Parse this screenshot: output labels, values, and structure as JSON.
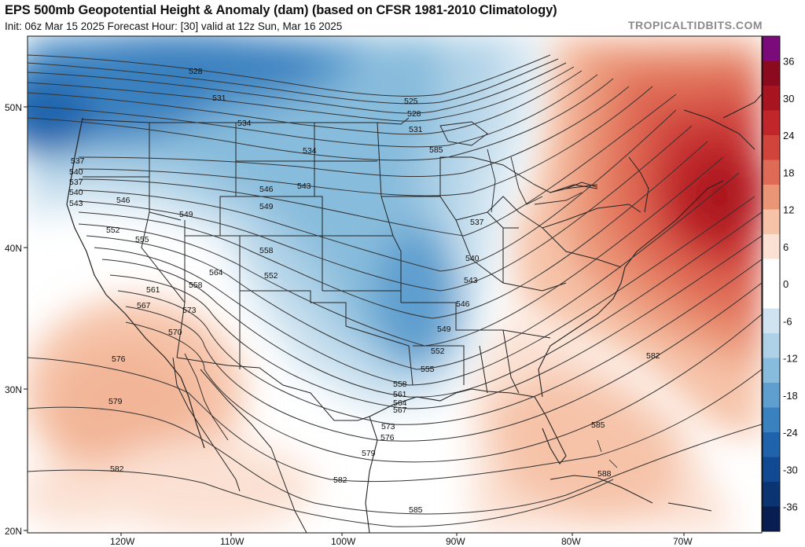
{
  "header": {
    "title": "EPS 500mb Geopotential Height & Anomaly (dam) (based on CFSR 1981-2010 Climatology)",
    "subtitle": "Init: 06z Mar 15 2025   Forecast Hour: [30]   valid at 12z Sun, Mar 16 2025",
    "site": "TROPICALTIDBITS.COM"
  },
  "axes": {
    "lat_labels": [
      "50N",
      "40N",
      "30N",
      "20N"
    ],
    "lon_labels": [
      "120W",
      "110W",
      "100W",
      "90W",
      "80W",
      "70W"
    ]
  },
  "colorbar": {
    "ticks": [
      "36",
      "30",
      "24",
      "18",
      "12",
      "6",
      "0",
      "-6",
      "-12",
      "-18",
      "-24",
      "-30",
      "-36"
    ],
    "colors": [
      "#7b0a7b",
      "#8b0a1e",
      "#a8141f",
      "#c0262a",
      "#d0443c",
      "#df6a55",
      "#eb9577",
      "#f6c3a8",
      "#fbe1d3",
      "#ffffff",
      "#ffffff",
      "#cfe3f0",
      "#aed1e7",
      "#88bcdc",
      "#5f9fcf",
      "#3a81c0",
      "#1f63ad",
      "#114a93",
      "#0a3572",
      "#081d52"
    ]
  },
  "contour_labels": [
    {
      "v": "528"
    },
    {
      "v": "531"
    },
    {
      "v": "534"
    },
    {
      "v": "525"
    },
    {
      "v": "528"
    },
    {
      "v": "531"
    },
    {
      "v": "537"
    },
    {
      "v": "540"
    },
    {
      "v": "534"
    },
    {
      "v": "537"
    },
    {
      "v": "540"
    },
    {
      "v": "543"
    },
    {
      "v": "546"
    },
    {
      "v": "549"
    },
    {
      "v": "552"
    },
    {
      "v": "555"
    },
    {
      "v": "558"
    },
    {
      "v": "561"
    },
    {
      "v": "546"
    },
    {
      "v": "543"
    },
    {
      "v": "549"
    },
    {
      "v": "552"
    },
    {
      "v": "558"
    },
    {
      "v": "564"
    },
    {
      "v": "567"
    },
    {
      "v": "570"
    },
    {
      "v": "573"
    },
    {
      "v": "576"
    },
    {
      "v": "579"
    },
    {
      "v": "582"
    },
    {
      "v": "585"
    },
    {
      "v": "537"
    },
    {
      "v": "540"
    },
    {
      "v": "543"
    },
    {
      "v": "546"
    },
    {
      "v": "549"
    },
    {
      "v": "552"
    },
    {
      "v": "555"
    },
    {
      "v": "558"
    },
    {
      "v": "561"
    },
    {
      "v": "564"
    },
    {
      "v": "567"
    },
    {
      "v": "573"
    },
    {
      "v": "576"
    },
    {
      "v": "579"
    },
    {
      "v": "582"
    },
    {
      "v": "585"
    },
    {
      "v": "582"
    },
    {
      "v": "585"
    },
    {
      "v": "588"
    }
  ]
}
